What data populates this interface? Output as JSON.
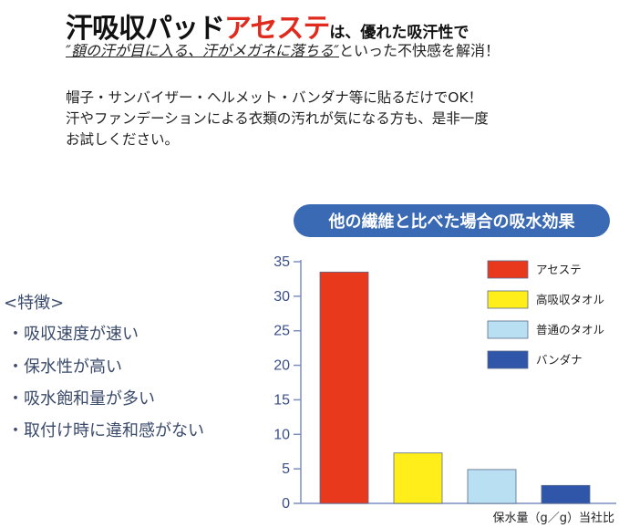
{
  "header": {
    "title_main": "汗吸収パッド",
    "title_brand": "アセステ",
    "title_particle": "は、",
    "title_tail": "優れた吸汗性で",
    "subtitle_quote": "″額の汗が目に入る、汗がメガネに落ちる″",
    "subtitle_rest": "といった不快感を解消！"
  },
  "body": {
    "line1": "帽子・サンバイザー・ヘルメット・バンダナ等に貼るだけでOK！",
    "line2": "汗やファンデーションによる衣類の汚れが気になる方も、是非一度",
    "line3": "お試しください。"
  },
  "features": {
    "heading": "<特徴>",
    "items": [
      "・吸収速度が速い",
      "・保水性が高い",
      "・吸水飽和量が多い",
      "・取付け時に違和感がない"
    ]
  },
  "chart_data": {
    "type": "bar",
    "title": "他の繊維と比べた場合の吸水効果",
    "categories": [
      "アセステ",
      "高吸収タオル",
      "普通のタオル",
      "バンダナ"
    ],
    "values": [
      33.5,
      7.3,
      4.9,
      2.6
    ],
    "colors": [
      "#e8391d",
      "#ffee1a",
      "#b8e0f2",
      "#2f56a8"
    ],
    "ylim": [
      0,
      35
    ],
    "yticks": [
      0,
      5,
      10,
      15,
      20,
      25,
      30,
      35
    ],
    "axis_caption": "保水量（g／g）当社比",
    "legend": [
      "アセステ",
      "高吸収タオル",
      "普通のタオル",
      "バンダナ"
    ],
    "legend_position": "top-right",
    "grid": false
  }
}
